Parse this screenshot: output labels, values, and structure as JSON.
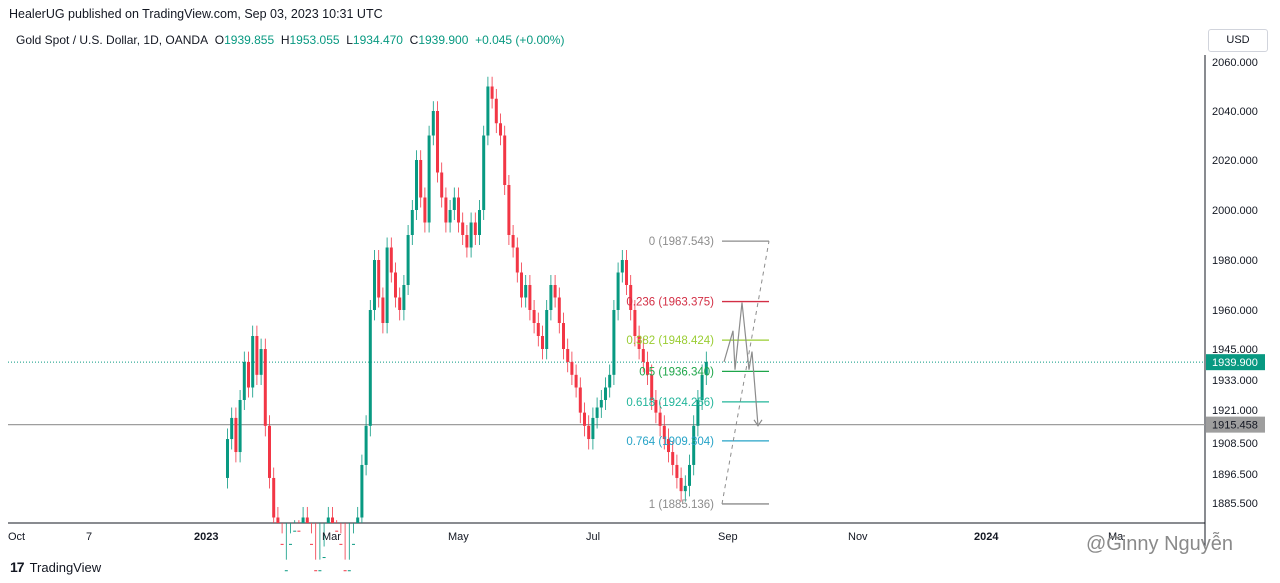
{
  "header": {
    "published_line": "HealerUG published on TradingView.com, Sep 03, 2023 10:31 UTC",
    "symbol": "Gold Spot / U.S. Dollar, 1D, OANDA",
    "open_label": "O",
    "open": "1939.855",
    "high_label": "H",
    "high": "1953.055",
    "low_label": "L",
    "low": "1934.470",
    "close_label": "C",
    "close": "1939.900",
    "change": "+0.045 (+0.00%)",
    "currency": "USD"
  },
  "footer": {
    "logo_text": "TradingView",
    "watermark": "@Ginny Nguyễn"
  },
  "chart_data": {
    "type": "candlestick",
    "y_ticks": [
      "2060.000",
      "2040.000",
      "2020.000",
      "2000.000",
      "1980.000",
      "1960.000",
      "1945.000",
      "1933.000",
      "1921.000",
      "1908.500",
      "1896.500",
      "1885.500"
    ],
    "y_tick_values": [
      2060,
      2040,
      2020,
      2000,
      1980,
      1960,
      1945,
      1933,
      1921,
      1908.5,
      1896.5,
      1885.5
    ],
    "x_ticks": [
      "Oct",
      "7",
      "2023",
      "Mar",
      "May",
      "Jul",
      "Sep",
      "Nov",
      "2024",
      "Ma"
    ],
    "last_price_label": "1939.900",
    "last_price": 1939.9,
    "hline_label": "1915.458",
    "hline": 1915.458,
    "fib_levels": [
      {
        "label": "0 (1987.543)",
        "value": 1987.543,
        "color": "#8c8c8c"
      },
      {
        "label": "0.236 (1963.375)",
        "value": 1963.375,
        "color": "#d32f45"
      },
      {
        "label": "0.382 (1948.424)",
        "value": 1948.424,
        "color": "#9acd32"
      },
      {
        "label": "0.5 (1936.340)",
        "value": 1936.34,
        "color": "#1ea64a"
      },
      {
        "label": "0.618 (1924.256)",
        "value": 1924.256,
        "color": "#22b59a"
      },
      {
        "label": "0.764 (1909.304)",
        "value": 1909.304,
        "color": "#26a3c7"
      },
      {
        "label": "1 (1885.136)",
        "value": 1885.136,
        "color": "#8c8c8c"
      }
    ],
    "colors": {
      "up": "#089981",
      "down": "#f23645",
      "grid_line": "#9e9e9e",
      "last_price": "#089981"
    }
  }
}
